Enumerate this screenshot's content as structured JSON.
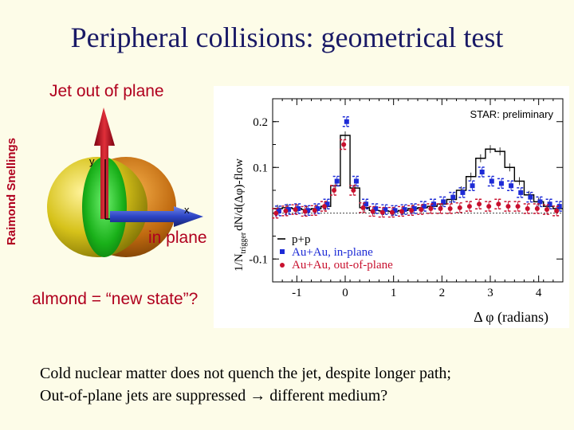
{
  "slide": {
    "title": "Peripheral collisions: geometrical test",
    "author": "Raimond Snellings",
    "jet_label": "Jet out of plane",
    "in_plane_label": "in plane",
    "axis_y": "y",
    "axis_x": "x",
    "almond_note": "almond = “new state”?",
    "conclusion_lines": [
      "Cold nuclear matter does not quench the jet, despite longer path;",
      "Out-of-plane jets are suppressed → different medium?"
    ]
  },
  "colors": {
    "title": "#1a1a66",
    "accent": "#b0001e",
    "pp": "#000000",
    "in_plane": "#1d2bd6",
    "out_of_plane": "#c8102e"
  },
  "chart_data": {
    "type": "line",
    "annotation": "STAR: preliminary",
    "ylabel": "1/N_trigger dN/d(Δφ)-flow",
    "ylabel_main": "1/N",
    "ylabel_sub": "trigger",
    "ylabel_tail": "dN/d(Δφ)-flow",
    "xlabel": "Δ φ (radians)",
    "xlim": [
      -1.5,
      4.5
    ],
    "ylim": [
      -0.15,
      0.25
    ],
    "xticks": [
      -1,
      0,
      1,
      2,
      3,
      4
    ],
    "xtick_labels": [
      "-1",
      "0",
      "1",
      "2",
      "3",
      "4"
    ],
    "yticks": [
      -0.1,
      0.1,
      0.2
    ],
    "ytick_labels": [
      "-0.1",
      "0.1",
      "0.2"
    ],
    "legend": [
      "p+p",
      "Au+Au, in-plane",
      "Au+Au, out-of-plane"
    ],
    "x": [
      -1.4,
      -1.2,
      -1.0,
      -0.8,
      -0.6,
      -0.4,
      -0.2,
      0.0,
      0.2,
      0.4,
      0.6,
      0.8,
      1.0,
      1.2,
      1.4,
      1.6,
      1.8,
      2.0,
      2.2,
      2.4,
      2.6,
      2.8,
      3.0,
      3.2,
      3.4,
      3.6,
      3.8,
      4.0,
      4.2,
      4.4
    ],
    "series": [
      {
        "name": "p+p",
        "values": [
          0.01,
          0.012,
          0.01,
          0.008,
          0.01,
          0.015,
          0.06,
          0.17,
          0.055,
          0.012,
          0.006,
          0.005,
          0.004,
          0.006,
          0.01,
          0.012,
          0.015,
          0.02,
          0.03,
          0.05,
          0.08,
          0.12,
          0.14,
          0.135,
          0.1,
          0.07,
          0.04,
          0.025,
          0.015,
          0.01
        ]
      },
      {
        "name": "Au+Au, in-plane",
        "values": [
          0.005,
          0.008,
          0.01,
          0.006,
          0.01,
          0.02,
          0.07,
          0.2,
          0.07,
          0.02,
          0.01,
          0.008,
          0.006,
          0.008,
          0.01,
          0.015,
          0.02,
          0.025,
          0.035,
          0.045,
          0.06,
          0.09,
          0.07,
          0.065,
          0.06,
          0.045,
          0.035,
          0.025,
          0.02,
          0.015
        ]
      },
      {
        "name": "Au+Au, out-of-plane",
        "values": [
          0.0,
          0.005,
          0.008,
          0.004,
          0.006,
          0.015,
          0.05,
          0.15,
          0.05,
          0.012,
          0.004,
          0.002,
          0.002,
          0.004,
          0.006,
          0.008,
          0.01,
          0.01,
          0.01,
          0.012,
          0.015,
          0.02,
          0.015,
          0.02,
          0.015,
          0.015,
          0.01,
          0.01,
          0.008,
          0.005
        ]
      }
    ]
  }
}
